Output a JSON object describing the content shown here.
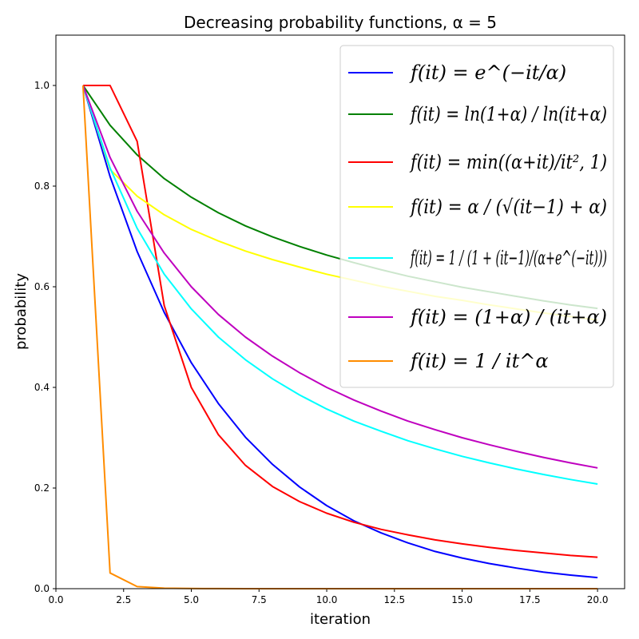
{
  "chart_data": {
    "type": "line",
    "title": "Decreasing probability functions, α = 5",
    "xlabel": "iteration",
    "ylabel": "probability",
    "xlim": [
      0,
      21
    ],
    "ylim": [
      0,
      1.1
    ],
    "xticks": [
      0.0,
      2.5,
      5.0,
      7.5,
      10.0,
      12.5,
      15.0,
      17.5,
      20.0
    ],
    "xtick_labels": [
      "0.0",
      "2.5",
      "5.0",
      "7.5",
      "10.0",
      "12.5",
      "15.0",
      "17.5",
      "20.0"
    ],
    "yticks": [
      0.0,
      0.2,
      0.4,
      0.6,
      0.8,
      1.0
    ],
    "ytick_labels": [
      "0.0",
      "0.2",
      "0.4",
      "0.6",
      "0.8",
      "1.0"
    ],
    "grid": false,
    "legend_position": "top-right",
    "x": [
      1,
      2,
      3,
      4,
      5,
      6,
      7,
      8,
      9,
      10,
      11,
      12,
      13,
      14,
      15,
      16,
      17,
      18,
      19,
      20
    ],
    "series": [
      {
        "name": "f(it) = e^(−it/α)",
        "color": "#0000ff",
        "values": [
          1.0,
          0.819,
          0.67,
          0.549,
          0.449,
          0.368,
          0.301,
          0.247,
          0.202,
          0.165,
          0.135,
          0.111,
          0.091,
          0.074,
          0.061,
          0.05,
          0.041,
          0.033,
          0.027,
          0.022
        ]
      },
      {
        "name": "f(it) = ln(1+α) / ln(it+α)",
        "color": "#008000",
        "values": [
          1.0,
          0.921,
          0.862,
          0.815,
          0.778,
          0.747,
          0.721,
          0.699,
          0.68,
          0.663,
          0.648,
          0.634,
          0.621,
          0.61,
          0.599,
          0.59,
          0.581,
          0.572,
          0.564,
          0.557
        ]
      },
      {
        "name": "f(it) = min((α+it)/it², 1)",
        "color": "#ff0000",
        "values": [
          1.0,
          1.0,
          0.889,
          0.5625,
          0.4,
          0.306,
          0.245,
          0.203,
          0.173,
          0.15,
          0.132,
          0.118,
          0.107,
          0.097,
          0.089,
          0.082,
          0.076,
          0.071,
          0.066,
          0.0625
        ]
      },
      {
        "name": "f(it) = α / (√(it−1) + α)",
        "color": "#ffff00",
        "values": [
          1.0,
          0.833,
          0.78,
          0.743,
          0.714,
          0.691,
          0.671,
          0.654,
          0.639,
          0.625,
          0.613,
          0.601,
          0.591,
          0.581,
          0.573,
          0.564,
          0.556,
          0.548,
          0.541,
          0.534
        ]
      },
      {
        "name": "f(it) = 1 / (1 + (it−1)/(α+e^(−it)))",
        "color": "#00ffff",
        "values": [
          1.0,
          0.836,
          0.716,
          0.625,
          0.556,
          0.5,
          0.455,
          0.417,
          0.385,
          0.357,
          0.333,
          0.313,
          0.294,
          0.278,
          0.263,
          0.25,
          0.238,
          0.227,
          0.217,
          0.208
        ]
      },
      {
        "name": "f(it) = (1+α) / (it+α)",
        "color": "#bf00bf",
        "values": [
          1.0,
          0.857,
          0.75,
          0.667,
          0.6,
          0.545,
          0.5,
          0.462,
          0.429,
          0.4,
          0.375,
          0.353,
          0.333,
          0.316,
          0.3,
          0.286,
          0.273,
          0.261,
          0.25,
          0.24
        ]
      },
      {
        "name": "f(it) = 1 / it^α",
        "color": "#ff8c00",
        "values": [
          1.0,
          0.03125,
          0.0041,
          0.00098,
          0.00032,
          0.00013,
          6e-05,
          3e-05,
          2e-05,
          1e-05,
          0.0,
          0.0,
          0.0,
          0.0,
          0.0,
          0.0,
          0.0,
          0.0,
          0.0,
          0.0
        ]
      }
    ]
  }
}
